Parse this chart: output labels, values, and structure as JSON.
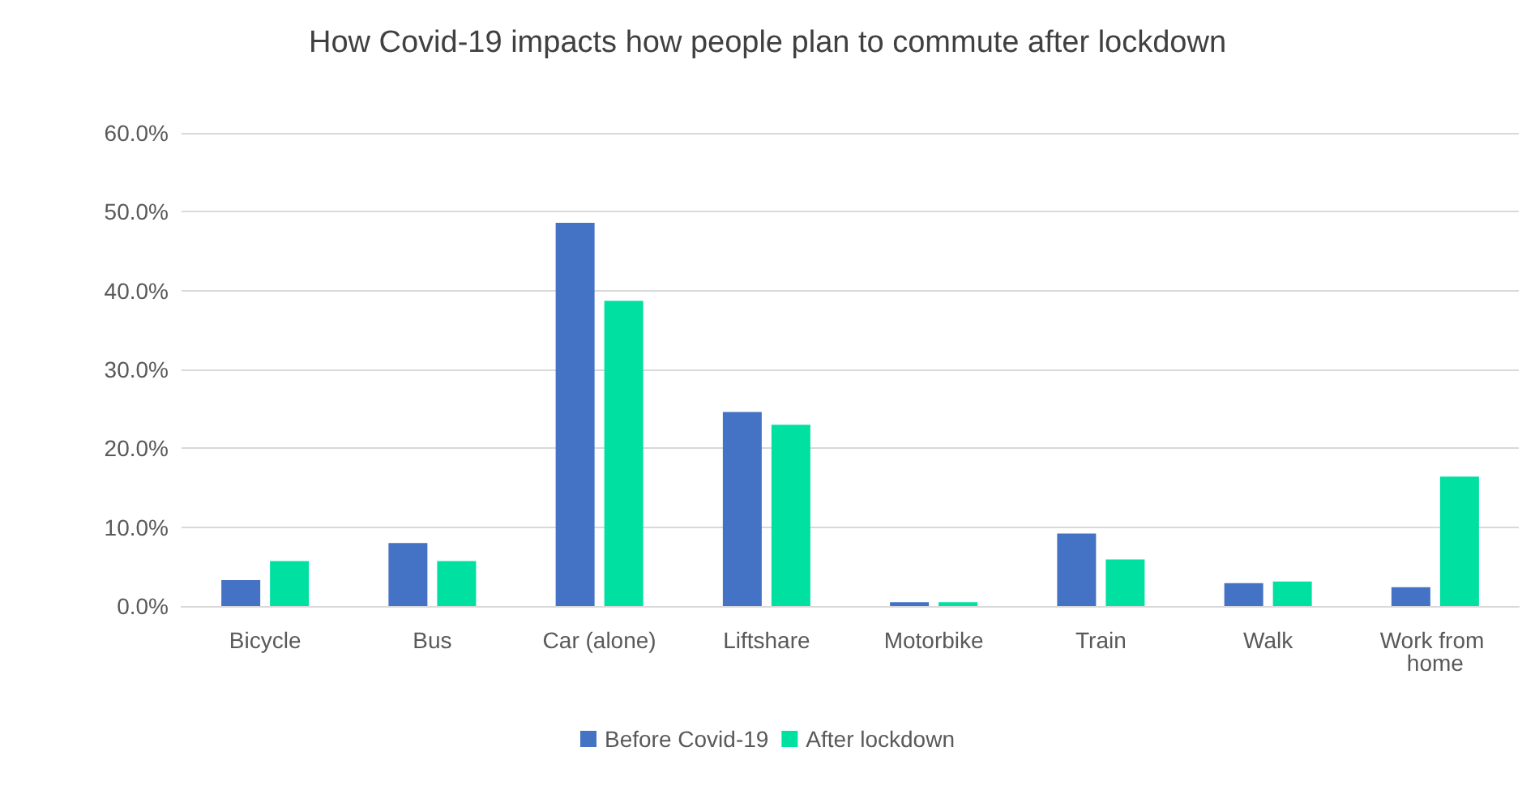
{
  "chart_data": {
    "type": "bar",
    "title": "How Covid-19 impacts how people plan to commute after lockdown",
    "categories": [
      "Bicycle",
      "Bus",
      "Car (alone)",
      "Liftshare",
      "Motorbike",
      "Train",
      "Walk",
      "Work from home"
    ],
    "series": [
      {
        "name": "Before Covid-19",
        "color": "#4472c4",
        "values": [
          3.3,
          8.0,
          48.6,
          24.6,
          0.5,
          9.2,
          2.9,
          2.4
        ]
      },
      {
        "name": "After lockdown",
        "color": "#00e0a0",
        "values": [
          5.7,
          5.7,
          38.7,
          23.0,
          0.5,
          5.9,
          3.1,
          16.4
        ]
      }
    ],
    "ylim": [
      0,
      60
    ],
    "yticks": [
      {
        "value": 0,
        "label": "0.0%"
      },
      {
        "value": 10,
        "label": "10.0%"
      },
      {
        "value": 20,
        "label": "20.0%"
      },
      {
        "value": 30,
        "label": "30.0%"
      },
      {
        "value": 40,
        "label": "40.0%"
      },
      {
        "value": 50,
        "label": "50.0%"
      },
      {
        "value": 60,
        "label": "60.0%"
      }
    ],
    "grid": "y",
    "legend": "bottom"
  }
}
